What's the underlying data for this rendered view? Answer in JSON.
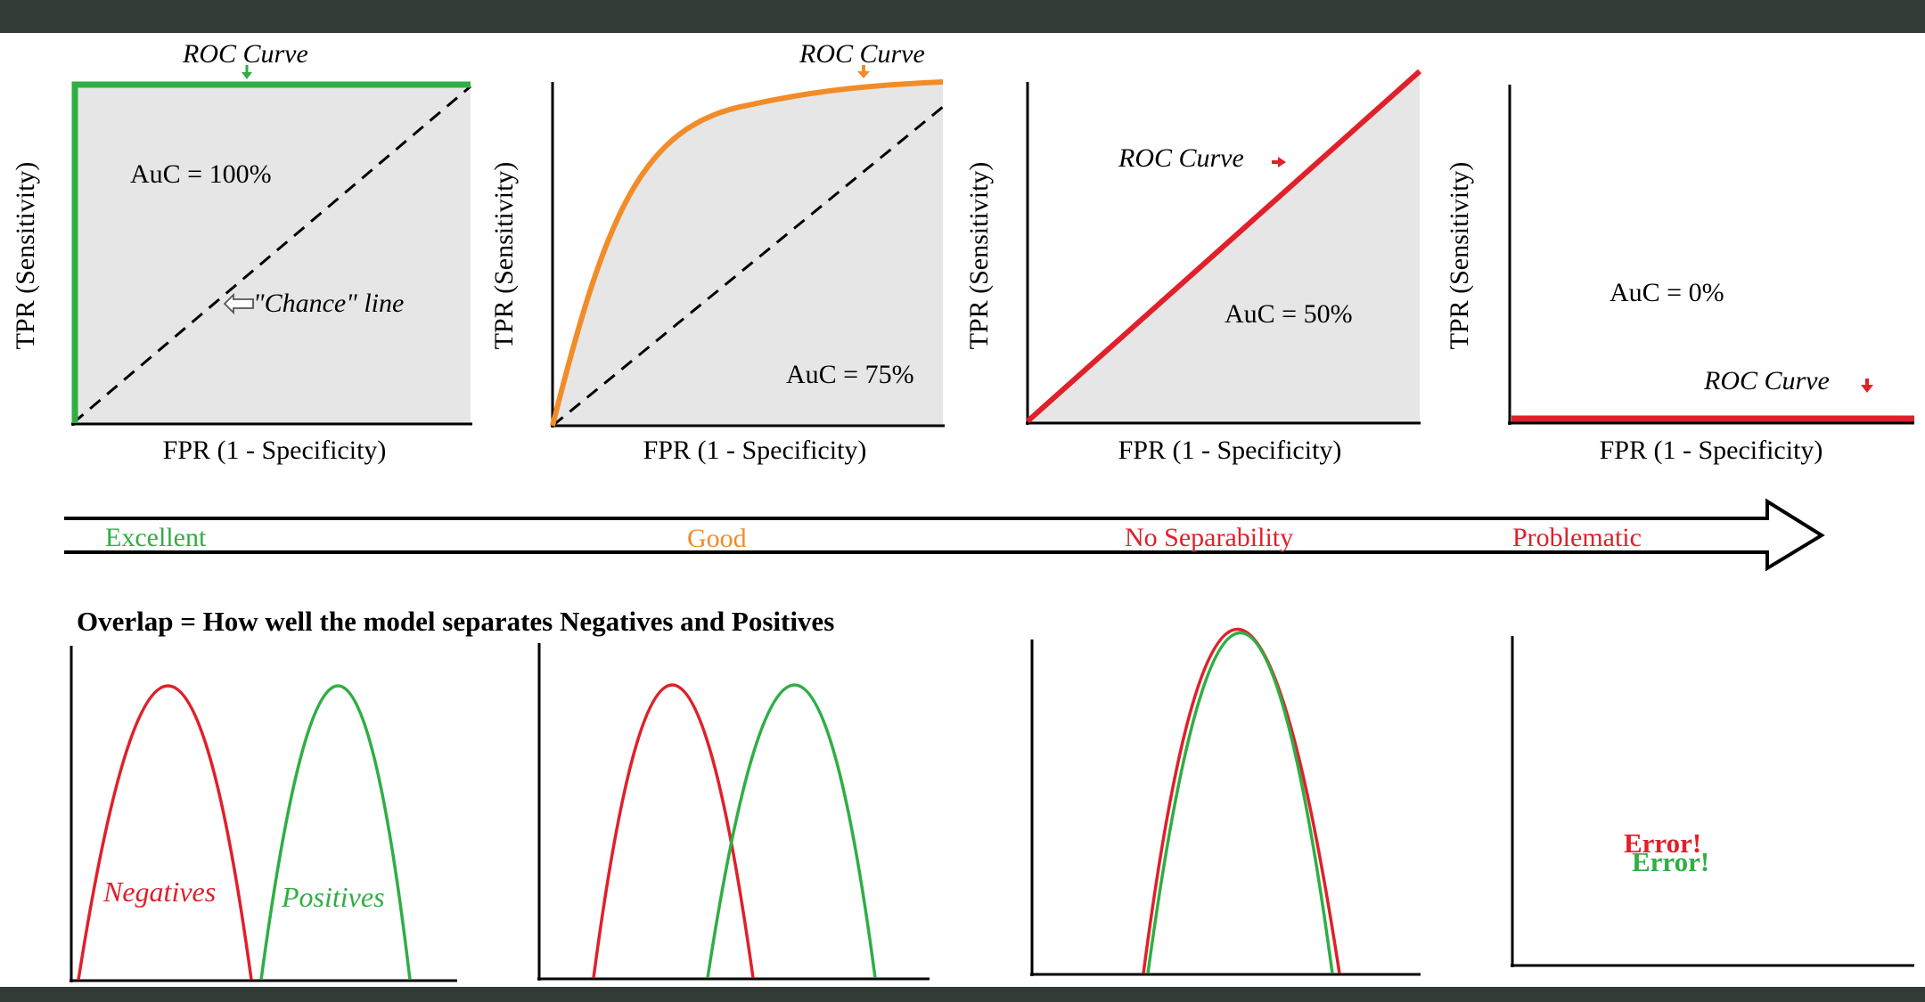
{
  "colors": {
    "frame": "#323b35",
    "excellent": "#2fae44",
    "good": "#f28c28",
    "bad": "#e0202a",
    "fill": "#e6e6e6",
    "ink": "#000000"
  },
  "roc_panels": [
    {
      "id": "excellent",
      "curve_label": "ROC Curve",
      "auc_label": "AuC = 100%",
      "chance_label": "\"Chance\" line",
      "x_label": "FPR (1 - Specificity)",
      "y_label": "TPR (Sensitivity)",
      "auc": 1.0
    },
    {
      "id": "good",
      "curve_label": "ROC Curve",
      "auc_label": "AuC = 75%",
      "x_label": "FPR (1 - Specificity)",
      "y_label": "TPR (Sensitivity)",
      "auc": 0.75
    },
    {
      "id": "no-separability",
      "curve_label": "ROC Curve",
      "auc_label": "AuC = 50%",
      "x_label": "FPR (1 - Specificity)",
      "y_label": "TPR (Sensitivity)",
      "auc": 0.5
    },
    {
      "id": "problematic",
      "curve_label": "ROC Curve",
      "auc_label": "AuC = 0%",
      "x_label": "FPR (1 - Specificity)",
      "y_label": "TPR (Sensitivity)",
      "auc": 0.0
    }
  ],
  "scale": {
    "labels": [
      "Excellent",
      "Good",
      "No Separability",
      "Problematic"
    ]
  },
  "overlap": {
    "title": "Overlap = How well the model separates Negatives and Positives",
    "negatives_label": "Negatives",
    "positives_label": "Positives",
    "error_text": "Error!"
  }
}
